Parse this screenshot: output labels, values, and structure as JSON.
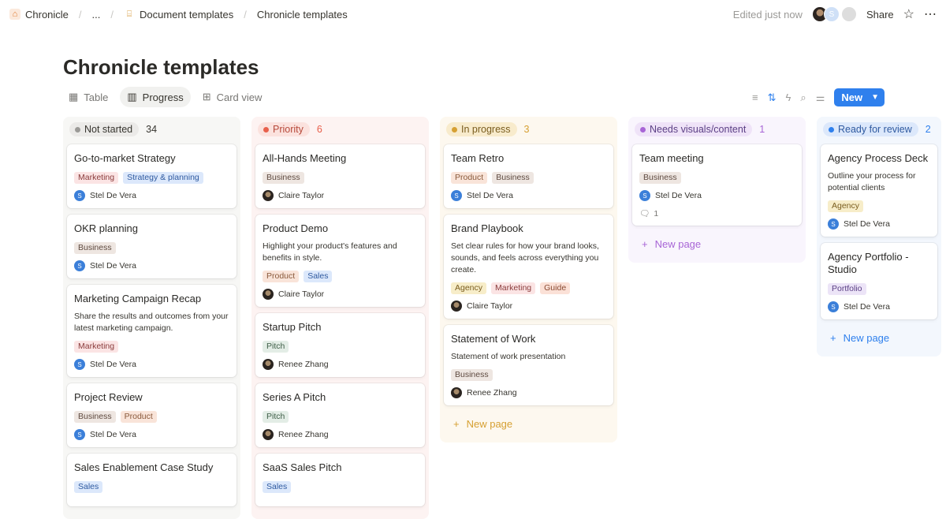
{
  "breadcrumb": {
    "items": [
      "Chronicle",
      "...",
      "Document templates",
      "Chronicle templates"
    ]
  },
  "header": {
    "edited": "Edited just now",
    "share": "Share",
    "avatar_initial": "S"
  },
  "page": {
    "title": "Chronicle templates"
  },
  "views": [
    {
      "label": "Table",
      "icon": "table-icon"
    },
    {
      "label": "Progress",
      "icon": "board-icon",
      "active": true
    },
    {
      "label": "Card view",
      "icon": "gallery-icon"
    }
  ],
  "toolbar": {
    "new_label": "New"
  },
  "new_page_label": "New page",
  "tag_colors": {
    "Marketing": [
      "#fbe4e4",
      "#8a3b3b"
    ],
    "Strategy & planning": [
      "#dce8fb",
      "#2f5aa0"
    ],
    "Business": [
      "#eee6e1",
      "#5f4b41"
    ],
    "Product": [
      "#f9e4d9",
      "#8a5a3c"
    ],
    "Sales": [
      "#dce8fb",
      "#2f5aa0"
    ],
    "Pitch": [
      "#e3ede6",
      "#3f5f48"
    ],
    "Agency": [
      "#f7edc9",
      "#7a5d1f"
    ],
    "Guide": [
      "#fbe1d7",
      "#8a4a32"
    ],
    "Portfolio": [
      "#ece4f7",
      "#5b3f85"
    ]
  },
  "columns": [
    {
      "name": "Not started",
      "count": "34",
      "pill": "#ebeae8",
      "dot": "#9b9a97",
      "text": "#37352f",
      "countColor": "#37352f",
      "bg": "#f7f7f5",
      "cards": [
        {
          "title": "Go-to-market Strategy",
          "tags": [
            "Marketing",
            "Strategy & planning"
          ],
          "person": "Stel De Vera"
        },
        {
          "title": "OKR planning",
          "tags": [
            "Business"
          ],
          "person": "Stel De Vera"
        },
        {
          "title": "Marketing Campaign Recap",
          "desc": "Share the results and outcomes from your latest marketing campaign.",
          "tags": [
            "Marketing"
          ],
          "person": "Stel De Vera"
        },
        {
          "title": "Project Review",
          "tags": [
            "Business",
            "Product"
          ],
          "person": "Stel De Vera"
        },
        {
          "title": "Sales Enablement Case Study",
          "tags": [
            "Sales"
          ]
        }
      ]
    },
    {
      "name": "Priority",
      "count": "6",
      "pill": "#fbe2de",
      "dot": "#e8604c",
      "text": "#b7493a",
      "countColor": "#e8604c",
      "bg": "#fdf3f2",
      "cards": [
        {
          "title": "All-Hands Meeting",
          "tags": [
            "Business"
          ],
          "person": "Claire Taylor",
          "photo": true
        },
        {
          "title": "Product Demo",
          "desc": "Highlight your product's features and benefits in style.",
          "tags": [
            "Product",
            "Sales"
          ],
          "person": "Claire Taylor",
          "photo": true
        },
        {
          "title": "Startup Pitch",
          "tags": [
            "Pitch"
          ],
          "person": "Renee Zhang",
          "photo": true
        },
        {
          "title": "Series A Pitch",
          "tags": [
            "Pitch"
          ],
          "person": "Renee Zhang",
          "photo": true
        },
        {
          "title": "SaaS Sales Pitch",
          "tags": [
            "Sales"
          ]
        }
      ]
    },
    {
      "name": "In progress",
      "count": "3",
      "pill": "#f8ebcc",
      "dot": "#d6a033",
      "text": "#7a5d1f",
      "countColor": "#d6a033",
      "bg": "#fdf8ef",
      "newpage": true,
      "cards": [
        {
          "title": "Team Retro",
          "tags": [
            "Product",
            "Business"
          ],
          "person": "Stel De Vera"
        },
        {
          "title": "Brand Playbook",
          "desc": "Set clear rules for how your brand looks, sounds, and feels across everything you create.",
          "tags": [
            "Agency",
            "Marketing",
            "Guide"
          ],
          "person": "Claire Taylor",
          "photo": true
        },
        {
          "title": "Statement of Work",
          "desc": "Statement of work presentation",
          "tags": [
            "Business"
          ],
          "person": "Renee Zhang",
          "photo": true
        }
      ]
    },
    {
      "name": "Needs visuals/content",
      "count": "1",
      "pill": "#efe3f8",
      "dot": "#a865d6",
      "text": "#5b3f85",
      "countColor": "#a865d6",
      "bg": "#f9f5fd",
      "newpage": true,
      "cards": [
        {
          "title": "Team meeting",
          "tags": [
            "Business"
          ],
          "person": "Stel De Vera",
          "comments": "1"
        }
      ]
    },
    {
      "name": "Ready for review",
      "count": "2",
      "pill": "#dce8fb",
      "dot": "#2f80ed",
      "text": "#2f5aa0",
      "countColor": "#2f80ed",
      "bg": "#f3f7fd",
      "newpage": true,
      "cards": [
        {
          "title": "Agency Process Deck",
          "desc": "Outline your process for potential clients",
          "tags": [
            "Agency"
          ],
          "person": "Stel De Vera"
        },
        {
          "title": "Agency Portfolio - Studio",
          "tags": [
            "Portfolio"
          ],
          "person": "Stel De Vera"
        }
      ]
    }
  ]
}
